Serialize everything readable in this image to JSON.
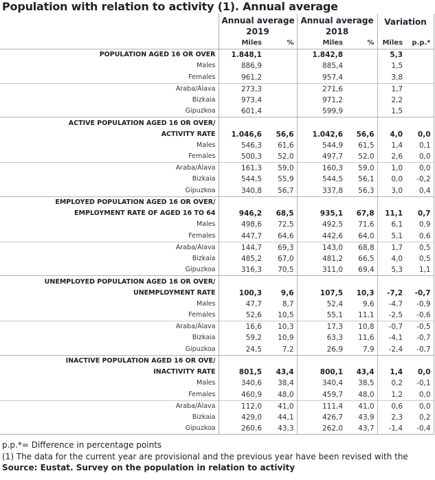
{
  "title": "Population with relation to activity (1). Annual average",
  "header": {
    "periods": [
      {
        "label": "Annual average",
        "year": "2019"
      },
      {
        "label": "Annual average",
        "year": "2018"
      }
    ],
    "variation": "Variation"
  },
  "subheader": [
    "Miles",
    "%",
    "Miles",
    "%",
    "Miles",
    "p.p.*"
  ],
  "groups": [
    {
      "label": [
        "POPULATION AGED 16 OR OVER"
      ],
      "values": [
        "1.848,1",
        null,
        "1.842,8",
        null,
        "5,3",
        null
      ],
      "rows": [
        {
          "label": "Males",
          "values": [
            "886,9",
            null,
            "885,4",
            null,
            "1,5",
            null
          ]
        },
        {
          "label": "Females",
          "values": [
            "961,2",
            null,
            "957,4",
            null,
            "3,8",
            null
          ]
        },
        {
          "label": "Araba/Álava",
          "values": [
            "273,3",
            null,
            "271,6",
            null,
            "1,7",
            null
          ]
        },
        {
          "label": "Bizkaia",
          "values": [
            "973,4",
            null,
            "971,2",
            null,
            "2,2",
            null
          ]
        },
        {
          "label": "Gipuzkoa",
          "values": [
            "601,4",
            null,
            "599,9",
            null,
            "1,5",
            null
          ]
        }
      ]
    },
    {
      "label": [
        "ACTIVE POPULATION AGED 16 OR OVER/",
        "ACTIVITY RATE"
      ],
      "values": [
        "1.046,6",
        "56,6",
        "1.042,6",
        "56,6",
        "4,0",
        "0,0"
      ],
      "rows": [
        {
          "label": "Males",
          "values": [
            "546,3",
            "61,6",
            "544,9",
            "61,5",
            "1,4",
            "0,1"
          ]
        },
        {
          "label": "Females",
          "values": [
            "500,3",
            "52,0",
            "497,7",
            "52,0",
            "2,6",
            "0,0"
          ]
        },
        {
          "label": "Araba/Álava",
          "values": [
            "161,3",
            "59,0",
            "160,3",
            "59,0",
            "1,0",
            "0,0"
          ]
        },
        {
          "label": "Bizkaia",
          "values": [
            "544,5",
            "55,9",
            "544,5",
            "56,1",
            "0,0",
            "-0,2"
          ]
        },
        {
          "label": "Gipuzkoa",
          "values": [
            "340,8",
            "56,7",
            "337,8",
            "56,3",
            "3,0",
            "0,4"
          ]
        }
      ]
    },
    {
      "label": [
        "EMPLOYED POPULATION AGED 16 OR OVER/",
        "EMPLOYMENT RATE OF AGED 16 TO 64"
      ],
      "values": [
        "946,2",
        "68,5",
        "935,1",
        "67,8",
        "11,1",
        "0,7"
      ],
      "rows": [
        {
          "label": "Males",
          "values": [
            "498,6",
            "72,5",
            "492,5",
            "71,6",
            "6,1",
            "0,9"
          ]
        },
        {
          "label": "Females",
          "values": [
            "447,7",
            "64,6",
            "442,6",
            "64,0",
            "5,1",
            "0,6"
          ]
        },
        {
          "label": "Araba/Álava",
          "values": [
            "144,7",
            "69,3",
            "143,0",
            "68,8",
            "1,7",
            "0,5"
          ]
        },
        {
          "label": "Bizkaia",
          "values": [
            "485,2",
            "67,0",
            "481,2",
            "66,5",
            "4,0",
            "0,5"
          ]
        },
        {
          "label": "Gipuzkoa",
          "values": [
            "316,3",
            "70,5",
            "311,0",
            "69,4",
            "5,3",
            "1,1"
          ]
        }
      ]
    },
    {
      "label": [
        "UNEMPLOYED POPULATION AGED 16 OR OVER/",
        "UNEMPLOYMENT RATE"
      ],
      "values": [
        "100,3",
        "9,6",
        "107,5",
        "10,3",
        "-7,2",
        "-0,7"
      ],
      "rows": [
        {
          "label": "Males",
          "values": [
            "47,7",
            "8,7",
            "52,4",
            "9,6",
            "-4,7",
            "-0,9"
          ]
        },
        {
          "label": "Females",
          "values": [
            "52,6",
            "10,5",
            "55,1",
            "11,1",
            "-2,5",
            "-0,6"
          ]
        },
        {
          "label": "Araba/Álava",
          "values": [
            "16,6",
            "10,3",
            "17,3",
            "10,8",
            "-0,7",
            "-0,5"
          ]
        },
        {
          "label": "Bizkaia",
          "values": [
            "59,2",
            "10,9",
            "63,3",
            "11,6",
            "-4,1",
            "-0,7"
          ]
        },
        {
          "label": "Gipuzkoa",
          "values": [
            "24,5",
            "7,2",
            "26,9",
            "7,9",
            "-2,4",
            "-0,7"
          ]
        }
      ]
    },
    {
      "label": [
        "INACTIVE POPULATION AGED 16 OR OVE/",
        "INACTIVITY RATE"
      ],
      "values": [
        "801,5",
        "43,4",
        "800,1",
        "43,4",
        "1,4",
        "0,0"
      ],
      "rows": [
        {
          "label": "Males",
          "values": [
            "340,6",
            "38,4",
            "340,4",
            "38,5",
            "0,2",
            "-0,1"
          ]
        },
        {
          "label": "Females",
          "values": [
            "460,9",
            "48,0",
            "459,7",
            "48,0",
            "1,2",
            "0,0"
          ]
        },
        {
          "label": "Araba/Álava",
          "values": [
            "112,0",
            "41,0",
            "111,4",
            "41,0",
            "0,6",
            "0,0"
          ]
        },
        {
          "label": "Bizkaia",
          "values": [
            "429,0",
            "44,1",
            "426,7",
            "43,9",
            "2,3",
            "0,2"
          ]
        },
        {
          "label": "Gipuzkoa",
          "values": [
            "260,6",
            "43,3",
            "262,0",
            "43,7",
            "-1,4",
            "-0,4"
          ]
        }
      ]
    }
  ],
  "notes": [
    "p.p.*= Difference in percentage points",
    "(1) The data for the current year are provisional and the previous year have been revised with the"
  ],
  "source": "Source: Eustat. Survey on the population in relation to activity"
}
